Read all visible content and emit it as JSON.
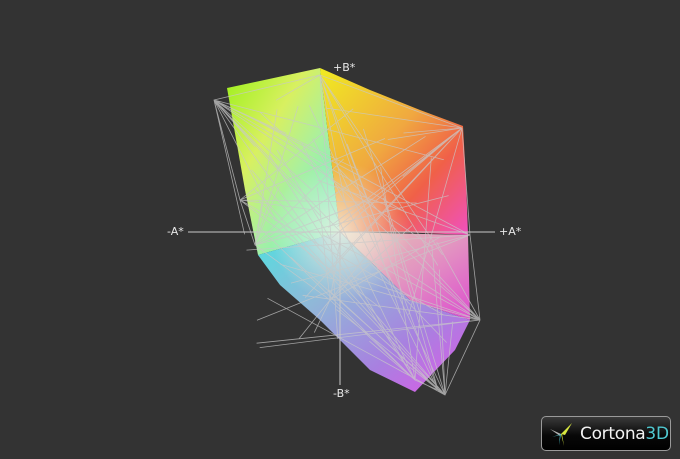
{
  "viewer": {
    "axes": {
      "plus_b": "+B*",
      "minus_b": "-B*",
      "minus_a": "-A*",
      "plus_a": "+A*"
    },
    "logo": {
      "text_main": "Cortona",
      "text_accent": "3D",
      "accent_color": "#4fc7cf"
    },
    "background_color": "#333333",
    "wireframe_color": "#c8c8c8"
  }
}
